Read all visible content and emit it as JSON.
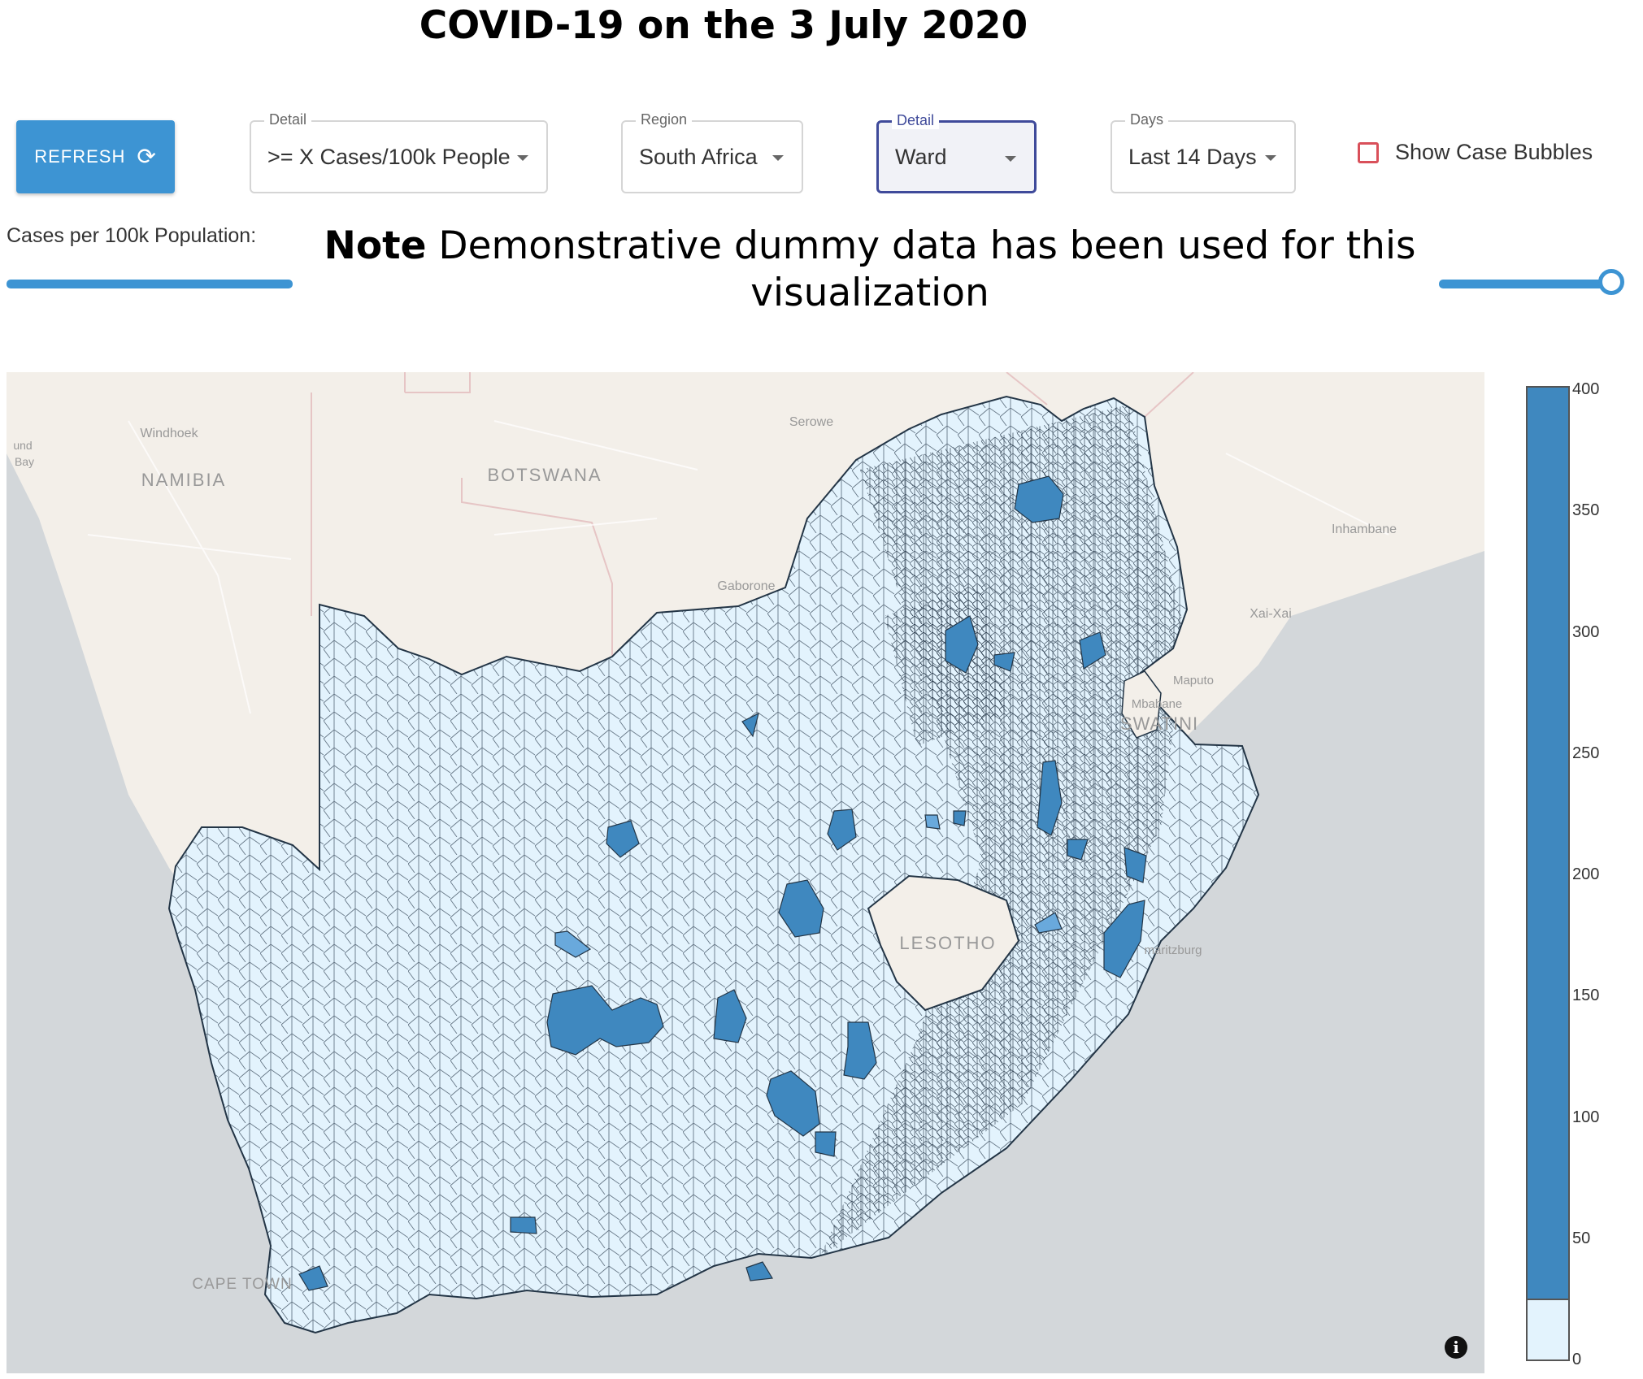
{
  "title": "COVID-19 on the 3 July 2020",
  "toolbar": {
    "refresh_label": "REFRESH",
    "refresh_icon": "refresh-icon",
    "detail_metric": {
      "legend": "Detail",
      "value": ">= X Cases/100k People"
    },
    "region": {
      "legend": "Region",
      "value": "South Africa"
    },
    "detail_level": {
      "legend": "Detail",
      "value": "Ward"
    },
    "days": {
      "legend": "Days",
      "value": "Last 14 Days"
    },
    "bubbles_label": "Show Case Bubbles",
    "bubbles_checked": false
  },
  "slider": {
    "label": "Cases per 100k Population:",
    "value": 400
  },
  "note": {
    "bold": "Note",
    "text": "Demonstrative dummy data has been used for this visualization"
  },
  "map": {
    "labels": {
      "namibia": "NAMIBIA",
      "botswana": "BOTSWANA",
      "lesotho": "LESOTHO",
      "swatini": "SWATINI",
      "windhoek": "Windhoek",
      "serowe": "Serowe",
      "gaborone": "Gaborone",
      "inhambane": "Inhambane",
      "xai_xai": "Xai-Xai",
      "maputo": "Maputo",
      "mbabane": "Mbabane",
      "pietermaritzburg": "maritzburg",
      "cape_town": "CAPE TOWN",
      "bay_fragment": "Bay",
      "und_fragment": "und"
    },
    "colors": {
      "ocean": "#d3d7da",
      "land": "#f3efe9",
      "low": "#e3f3fd",
      "high": "#3f88bf",
      "mid": "#69a9dc",
      "border": "#233546"
    }
  },
  "legend": {
    "ticks": [
      "400",
      "350",
      "300",
      "250",
      "200",
      "150",
      "100",
      "50",
      "0"
    ],
    "threshold": 25,
    "max": 400
  },
  "info_icon": "info-icon"
}
